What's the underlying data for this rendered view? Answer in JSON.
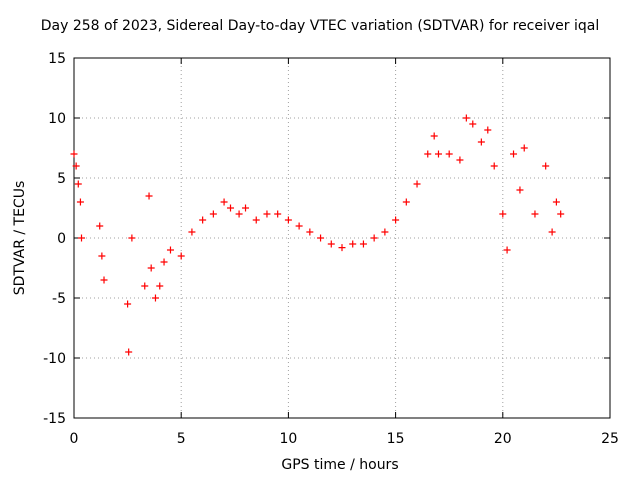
{
  "chart_data": {
    "type": "scatter",
    "title": "Day 258 of 2023, Sidereal Day-to-day VTEC variation (SDTVAR) for receiver iqal",
    "xlabel": "GPS time / hours",
    "ylabel": "SDTVAR / TECUs",
    "xlim": [
      0,
      25
    ],
    "ylim": [
      -15,
      15
    ],
    "xticks": [
      0,
      5,
      10,
      15,
      20,
      25
    ],
    "yticks": [
      -15,
      -10,
      -5,
      0,
      5,
      10,
      15
    ],
    "grid": true,
    "marker": "+",
    "color": "#ff0000",
    "series": [
      {
        "name": "SDTVAR",
        "x": [
          0.0,
          0.1,
          0.2,
          0.3,
          0.35,
          1.2,
          1.3,
          1.4,
          2.5,
          2.55,
          2.7,
          3.3,
          3.5,
          3.6,
          3.8,
          4.0,
          4.2,
          4.5,
          5.0,
          5.5,
          6.0,
          6.5,
          7.0,
          7.3,
          7.7,
          8.0,
          8.5,
          9.0,
          9.5,
          10.0,
          10.5,
          11.0,
          11.5,
          12.0,
          12.5,
          13.0,
          13.5,
          14.0,
          14.5,
          15.0,
          15.5,
          16.0,
          16.5,
          16.8,
          17.0,
          17.5,
          18.0,
          18.3,
          18.6,
          19.0,
          19.3,
          19.6,
          20.0,
          20.2,
          20.5,
          20.8,
          21.0,
          21.5,
          22.0,
          22.3,
          22.5,
          22.7
        ],
        "y": [
          7.0,
          6.0,
          4.5,
          3.0,
          0.0,
          1.0,
          -1.5,
          -3.5,
          -5.5,
          -9.5,
          0.0,
          -4.0,
          3.5,
          -2.5,
          -5.0,
          -4.0,
          -2.0,
          -1.0,
          -1.5,
          0.5,
          1.5,
          2.0,
          3.0,
          2.5,
          2.0,
          2.5,
          1.5,
          2.0,
          2.0,
          1.5,
          1.0,
          0.5,
          0.0,
          -0.5,
          -0.8,
          -0.5,
          -0.5,
          0.0,
          0.5,
          1.5,
          3.0,
          4.5,
          7.0,
          8.5,
          7.0,
          7.0,
          6.5,
          10.0,
          9.5,
          8.0,
          9.0,
          6.0,
          2.0,
          -1.0,
          7.0,
          4.0,
          7.5,
          2.0,
          6.0,
          0.5,
          3.0,
          2.0
        ]
      }
    ]
  }
}
